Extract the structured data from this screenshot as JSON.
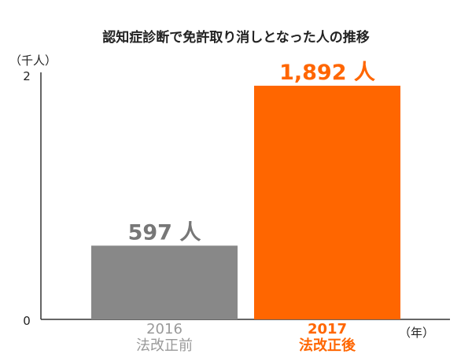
{
  "chart_data": {
    "type": "bar",
    "title": "認知症診断で免許取り消しとなった人の推移",
    "y_unit": "（千人）",
    "x_unit": "（年）",
    "ylim": [
      0,
      2
    ],
    "yticks": [
      "0",
      "2"
    ],
    "grid": false,
    "legend": "none",
    "bars": [
      {
        "year": "2016",
        "caption": "法改正前",
        "value": 0.597,
        "value_label": "597 人",
        "color": "#888888",
        "label_color": "#777777",
        "category_color": "#999999",
        "category_bold": false
      },
      {
        "year": "2017",
        "caption": "法改正後",
        "value": 1.892,
        "value_label": "1,892 人",
        "color": "#ff6600",
        "label_color": "#ff6600",
        "category_color": "#ff6600",
        "category_bold": true
      }
    ]
  }
}
